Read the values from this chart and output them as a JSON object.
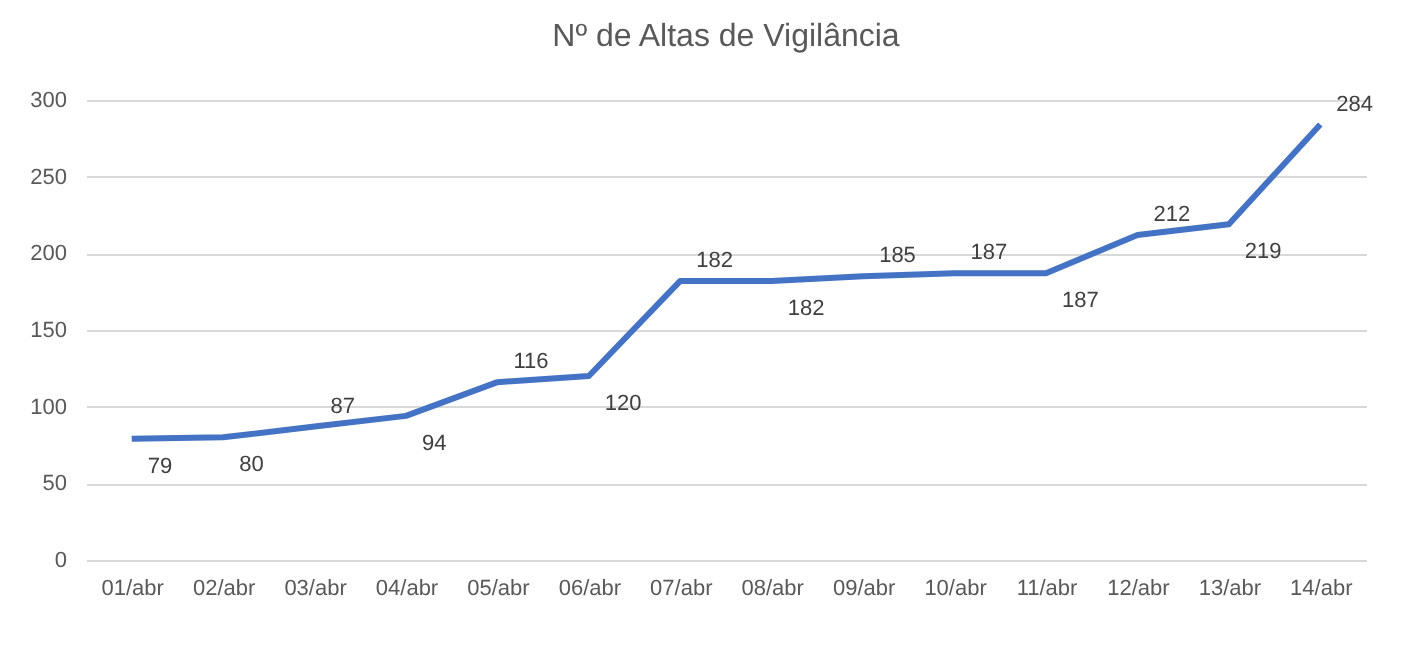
{
  "chart_data": {
    "type": "line",
    "title": "Nº de Altas de Vigilância",
    "categories": [
      "01/abr",
      "02/abr",
      "03/abr",
      "04/abr",
      "05/abr",
      "06/abr",
      "07/abr",
      "08/abr",
      "09/abr",
      "10/abr",
      "11/abr",
      "12/abr",
      "13/abr",
      "14/abr"
    ],
    "series": [
      {
        "color": "#4472c4",
        "values": [
          79,
          80,
          87,
          94,
          116,
          120,
          182,
          182,
          185,
          187,
          187,
          212,
          219,
          284
        ]
      }
    ],
    "ylim": [
      0,
      300
    ],
    "yticks": [
      0,
      50,
      100,
      150,
      200,
      250,
      300
    ],
    "grid": "y",
    "data_labels": true,
    "marker": "none",
    "line_style": "solid"
  }
}
